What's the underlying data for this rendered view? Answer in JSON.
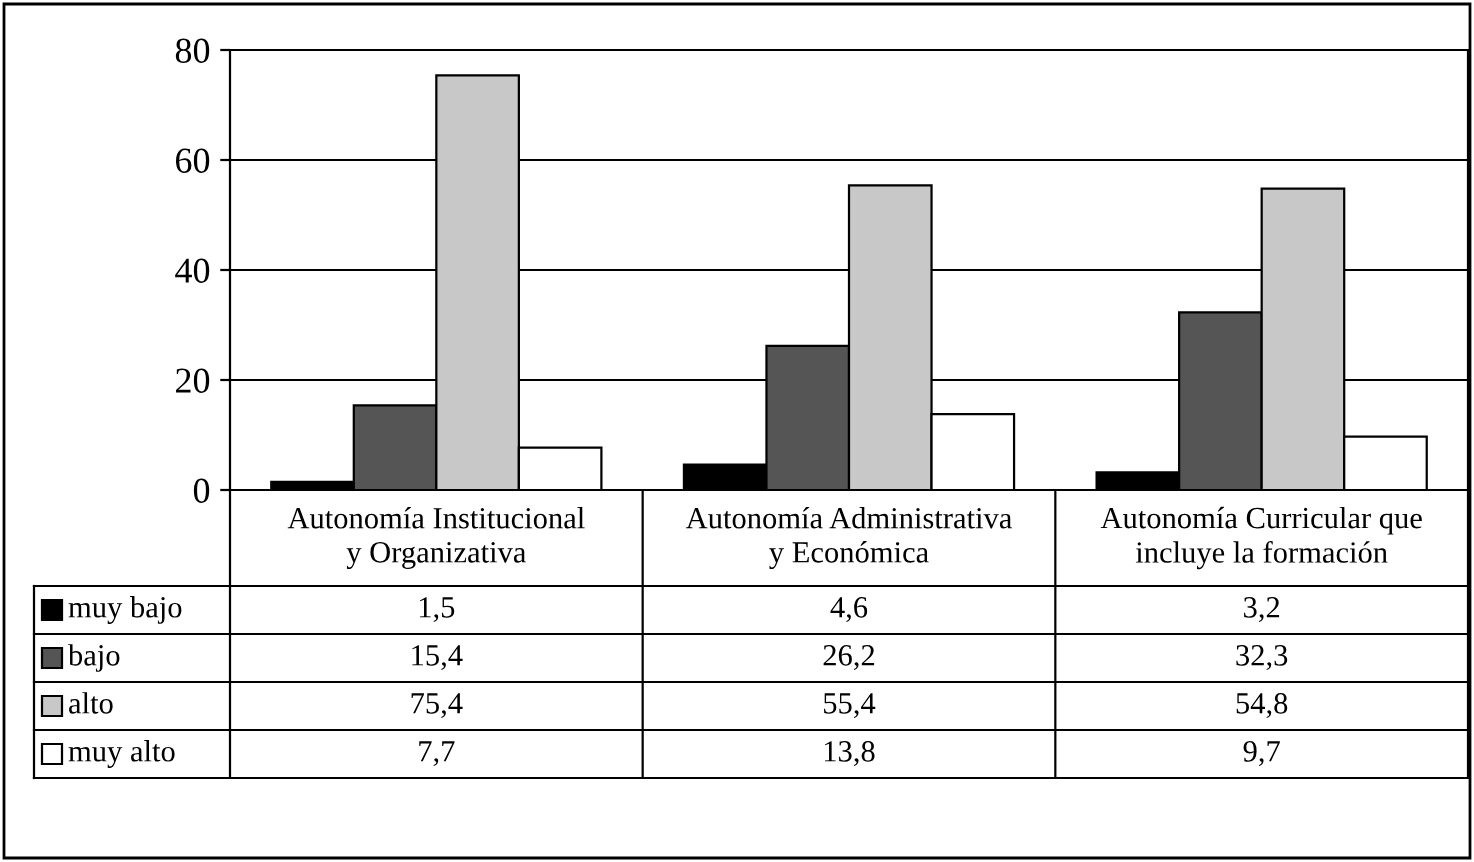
{
  "chart_data": {
    "type": "bar",
    "categories": [
      "Autonomía Institucional y Organizativa",
      "Autonomía Administrativa y Económica",
      "Autonomía Curricular que incluye la formación"
    ],
    "series": [
      {
        "name": "muy bajo",
        "color": "#000000",
        "values": [
          1.5,
          4.6,
          3.2
        ],
        "value_labels": [
          "1,5",
          "4,6",
          "3,2"
        ]
      },
      {
        "name": "bajo",
        "color": "#555555",
        "values": [
          15.4,
          26.2,
          32.3
        ],
        "value_labels": [
          "15,4",
          "26,2",
          "32,3"
        ]
      },
      {
        "name": "alto",
        "color": "#c8c8c8",
        "values": [
          75.4,
          55.4,
          54.8
        ],
        "value_labels": [
          "75,4",
          "55,4",
          "54,8"
        ]
      },
      {
        "name": "muy alto",
        "color": "#ffffff",
        "values": [
          7.7,
          13.8,
          9.7
        ],
        "value_labels": [
          "7,7",
          "13,8",
          "9,7"
        ]
      }
    ],
    "ylim": [
      0,
      80
    ],
    "yticks": [
      0,
      20,
      40,
      60,
      80
    ],
    "grid": "y",
    "legend": "bottom"
  }
}
